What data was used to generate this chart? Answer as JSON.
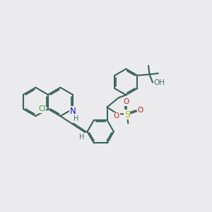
{
  "bg_color": "#ebebed",
  "bond_color": "#3a6459",
  "bond_lw": 1.5,
  "dbo": 0.055,
  "atom_colors": {
    "Cl": "#2ca02c",
    "N": "#1414cc",
    "O": "#cc2222",
    "S": "#bbbb00",
    "H": "#4a6e62",
    "OH": "#4a6e62"
  },
  "fs": 7.5,
  "figsize": [
    3.0,
    3.0
  ],
  "dpi": 100,
  "xlim": [
    0,
    10
  ],
  "ylim": [
    0,
    10
  ]
}
